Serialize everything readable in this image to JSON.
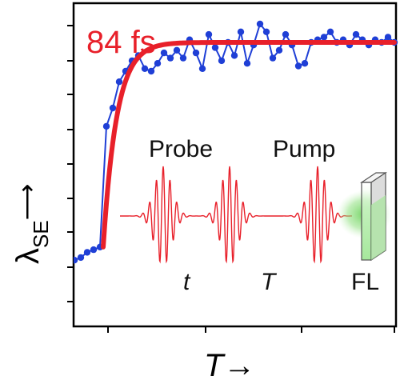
{
  "chart_data": {
    "type": "line",
    "xlabel": "T→",
    "ylabel_main": "λ",
    "ylabel_sub": "SE",
    "ylabel_arrow": "⟶",
    "fit_label": "84 fs",
    "xlim": [
      0,
      10
    ],
    "ylim": [
      0,
      1
    ],
    "grid": false,
    "series": [
      {
        "role": "measured",
        "color": "#1f3fd6",
        "x": [
          0.0,
          0.2,
          0.4,
          0.6,
          0.8,
          1.0,
          1.2,
          1.4,
          1.6,
          1.8,
          2.0,
          2.2,
          2.4,
          2.6,
          2.8,
          3.0,
          3.2,
          3.4,
          3.6,
          3.8,
          4.0,
          4.2,
          4.4,
          4.6,
          4.8,
          5.0,
          5.2,
          5.4,
          5.6,
          5.8,
          6.0,
          6.2,
          6.4,
          6.6,
          6.8,
          7.0,
          7.2,
          7.4,
          7.6,
          7.8,
          8.0,
          8.2,
          8.4,
          8.6,
          8.8,
          9.0,
          9.2,
          9.4,
          9.6,
          9.8,
          10.0
        ],
        "y": [
          0.1,
          0.11,
          0.13,
          0.14,
          0.15,
          0.61,
          0.68,
          0.78,
          0.82,
          0.86,
          0.88,
          0.83,
          0.82,
          0.85,
          0.89,
          0.87,
          0.9,
          0.87,
          0.94,
          0.89,
          0.83,
          0.96,
          0.91,
          0.86,
          0.93,
          0.88,
          0.97,
          0.85,
          0.92,
          1.0,
          0.97,
          0.87,
          0.9,
          0.96,
          0.92,
          0.84,
          0.85,
          0.93,
          0.94,
          0.95,
          0.97,
          0.93,
          0.94,
          0.92,
          0.96,
          0.94,
          0.92,
          0.94,
          0.93,
          0.95,
          0.93
        ]
      },
      {
        "role": "fit",
        "color": "#e8202a",
        "time_constant": "84 fs",
        "rise_start_x": 0.9,
        "plateau_y": 0.93,
        "baseline_y": 0.15
      }
    ]
  },
  "inset": {
    "probe_label": "Probe",
    "pump_label": "Pump",
    "t_label": "t",
    "T_label": "T",
    "fl_label": "FL",
    "pulse_color": "#e8202a",
    "cuvette_fill": "#b8efb2",
    "glow_color": "#7fd873"
  }
}
